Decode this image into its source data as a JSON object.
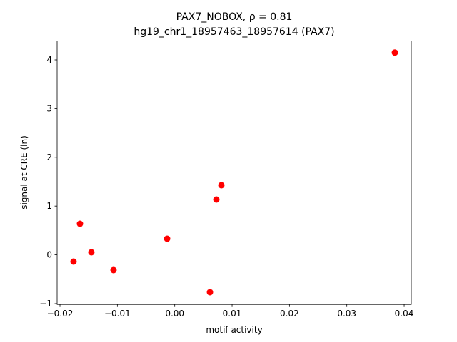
{
  "chart_data": {
    "type": "scatter",
    "title": "PAX7_NOBOX, ρ = 0.81",
    "subtitle": "hg19_chr1_18957463_18957614 (PAX7)",
    "x_label": "motif activity",
    "y_label": "signal at CRE (ln)",
    "color": "#ff0000",
    "x": [
      -0.01764,
      -0.01652,
      -0.01453,
      -0.01067,
      -0.00133,
      0.00614,
      0.00726,
      0.00813,
      0.03838
    ],
    "values": [
      -0.137,
      0.637,
      0.053,
      -0.313,
      0.33,
      -0.766,
      1.135,
      1.427,
      4.149
    ],
    "xlim": [
      -0.0205,
      0.04124
    ],
    "ylim": [
      -1.018,
      4.386
    ],
    "xticks": [
      {
        "value": -0.02,
        "label": "−0.02"
      },
      {
        "value": -0.01,
        "label": "−0.01"
      },
      {
        "value": 0,
        "label": "0.00"
      },
      {
        "value": 0.01,
        "label": "0.01"
      },
      {
        "value": 0.02,
        "label": "0.02"
      },
      {
        "value": 0.03,
        "label": "0.03"
      },
      {
        "value": 0.04,
        "label": "0.04"
      }
    ],
    "yticks": [
      {
        "value": -1,
        "label": "−1"
      },
      0,
      1,
      2,
      3,
      4
    ]
  }
}
